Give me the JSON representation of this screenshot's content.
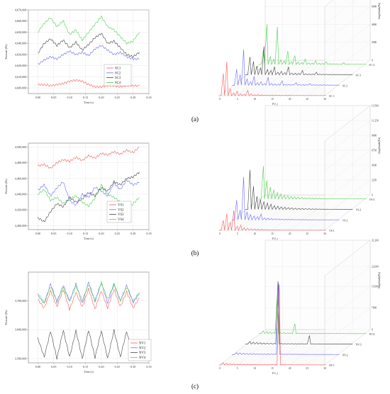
{
  "panels": [
    {
      "label": "(a)"
    },
    {
      "label": "(b)"
    },
    {
      "label": "(c)"
    }
  ],
  "colors": {
    "series1": "#ff5a5a",
    "series2": "#6b6bff",
    "series3": "#444444",
    "series4": "#4fd04f"
  },
  "chart_data": [
    {
      "type": "line",
      "panel": "(a)",
      "xlabel": "Time (s)",
      "ylabel": "Pressure (Pa)",
      "xlim": [
        -0.03,
        0.35
      ],
      "ylim": [
        4595000,
        4670000
      ],
      "xticks": [
        "0.00",
        "0.05",
        "0.10",
        "0.15",
        "0.20",
        "0.25",
        "0.30",
        "0.35"
      ],
      "yticks": [
        "4,600,000",
        "4,610,000",
        "4,620,000",
        "4,630,000",
        "4,640,000",
        "4,650,000",
        "4,660,000",
        "4,670,000"
      ],
      "grid": true,
      "legend": "bottom-right",
      "x": [
        0.0,
        0.02,
        0.04,
        0.06,
        0.08,
        0.1,
        0.12,
        0.14,
        0.16,
        0.18,
        0.2,
        0.22,
        0.24,
        0.26,
        0.28,
        0.3,
        0.32
      ],
      "series": [
        {
          "name": "SC1",
          "values": [
            4603000,
            4603000,
            4602000,
            4603000,
            4604000,
            4606000,
            4607000,
            4606000,
            4603000,
            4601000,
            4601000,
            4602000,
            4602000,
            4601000,
            4602000,
            4602000,
            4602000
          ]
        },
        {
          "name": "SC2",
          "values": [
            4621000,
            4625000,
            4628000,
            4626000,
            4630000,
            4633000,
            4630000,
            4632000,
            4629000,
            4635000,
            4638000,
            4634000,
            4630000,
            4632000,
            4628000,
            4626000,
            4626000
          ]
        },
        {
          "name": "SC3",
          "values": [
            4631000,
            4640000,
            4644000,
            4638000,
            4643000,
            4636000,
            4641000,
            4634000,
            4639000,
            4645000,
            4649000,
            4640000,
            4642000,
            4636000,
            4630000,
            4628000,
            4632000
          ]
        },
        {
          "name": "SC4",
          "values": [
            4650000,
            4658000,
            4663000,
            4655000,
            4660000,
            4648000,
            4652000,
            4643000,
            4650000,
            4657000,
            4664000,
            4655000,
            4652000,
            4646000,
            4640000,
            4642000,
            4650000
          ]
        }
      ]
    },
    {
      "type": "line",
      "panel": "(b)",
      "xlabel": "Time (s)",
      "ylabel": "Pressure (Pa)",
      "xlim": [
        -0.03,
        0.35
      ],
      "ylim": [
        4395000,
        4505000
      ],
      "xticks": [
        "0.00",
        "0.05",
        "0.10",
        "0.15",
        "0.20",
        "0.25",
        "0.30",
        "0.35"
      ],
      "yticks": [
        "4,400,000",
        "4,420,000",
        "4,440,000",
        "4,460,000",
        "4,480,000",
        "4,500,000"
      ],
      "grid": true,
      "legend": "bottom-right",
      "x": [
        0.0,
        0.02,
        0.04,
        0.06,
        0.08,
        0.1,
        0.12,
        0.14,
        0.16,
        0.18,
        0.2,
        0.22,
        0.24,
        0.26,
        0.28,
        0.3,
        0.32
      ],
      "series": [
        {
          "name": "VS1",
          "values": [
            4476000,
            4478000,
            4473000,
            4480000,
            4484000,
            4482000,
            4487000,
            4483000,
            4489000,
            4486000,
            4492000,
            4490000,
            4494000,
            4491000,
            4496000,
            4493000,
            4500000
          ]
        },
        {
          "name": "VS2",
          "values": [
            4445000,
            4452000,
            4438000,
            4448000,
            4456000,
            4432000,
            4426000,
            4440000,
            4436000,
            4449000,
            4444000,
            4438000,
            4454000,
            4446000,
            4458000,
            4452000,
            4455000
          ]
        },
        {
          "name": "VS3",
          "values": [
            4410000,
            4405000,
            4418000,
            4428000,
            4424000,
            4436000,
            4430000,
            4434000,
            4442000,
            4438000,
            4448000,
            4444000,
            4456000,
            4452000,
            4460000,
            4462000,
            4468000
          ]
        },
        {
          "name": "VS4",
          "values": [
            4440000,
            4446000,
            4432000,
            4436000,
            4428000,
            4434000,
            4438000,
            4430000,
            4425000,
            4435000,
            4452000,
            4440000,
            4436000,
            4430000,
            4420000,
            4428000,
            4436000
          ]
        }
      ]
    },
    {
      "type": "line",
      "panel": "(c)",
      "xlabel": "Time (s)",
      "ylabel": "Pressure (Pa)",
      "xlim": [
        -0.03,
        0.35
      ],
      "ylim": [
        3485000,
        3800000
      ],
      "xticks": [
        "0.00",
        "0.05",
        "0.10",
        "0.15",
        "0.20",
        "0.25",
        "0.30",
        "0.35"
      ],
      "yticks": [
        "3,500,000",
        "3,600,000",
        "3,700,000"
      ],
      "grid": true,
      "legend": "bottom-right",
      "x": [
        0.0,
        0.02,
        0.04,
        0.06,
        0.08,
        0.1,
        0.12,
        0.14,
        0.16,
        0.18,
        0.2,
        0.22,
        0.24,
        0.26,
        0.28,
        0.3,
        0.32
      ],
      "series": [
        {
          "name": "NV1",
          "values": [
            3705000,
            3675000,
            3735000,
            3680000,
            3740000,
            3670000,
            3730000,
            3678000,
            3742000,
            3672000,
            3735000,
            3675000,
            3740000,
            3680000,
            3732000,
            3676000,
            3710000
          ]
        },
        {
          "name": "NV2",
          "values": [
            3720000,
            3690000,
            3760000,
            3695000,
            3755000,
            3700000,
            3760000,
            3690000,
            3765000,
            3698000,
            3762000,
            3692000,
            3758000,
            3700000,
            3755000,
            3695000,
            3725000
          ]
        },
        {
          "name": "NV3",
          "values": [
            3570000,
            3505000,
            3595000,
            3500000,
            3598000,
            3505000,
            3596000,
            3500000,
            3598000,
            3503000,
            3596000,
            3500000,
            3598000,
            3505000,
            3595000,
            3500000,
            3560000
          ]
        },
        {
          "name": "NV4",
          "values": [
            3725000,
            3695000,
            3750000,
            3700000,
            3745000,
            3698000,
            3752000,
            3702000,
            3758000,
            3700000,
            3765000,
            3705000,
            3760000,
            3700000,
            3748000,
            3698000,
            3730000
          ]
        }
      ]
    },
    {
      "type": "waterfall",
      "panel": "(a)",
      "xlabel": "F/f_r",
      "zlabel": "Amplitude(Pa)",
      "xticks": [
        "0",
        "5",
        "10",
        "15",
        "20",
        "25",
        "30"
      ],
      "zticks": [
        "0",
        "2000",
        "4000",
        "6000",
        "8000",
        "10,000"
      ],
      "zlim": [
        0,
        10000
      ],
      "row_labels": [
        "SC-1",
        "SC-2",
        "SC-3",
        "SC-4"
      ],
      "x": [
        0,
        1,
        2,
        3,
        4,
        5,
        6,
        7,
        8,
        9,
        10,
        11,
        12,
        13,
        14,
        15,
        16,
        17,
        18,
        19,
        20,
        21,
        22,
        23,
        24,
        25,
        26,
        27,
        28,
        29,
        30
      ],
      "series": [
        {
          "name": "SC1",
          "values": [
            0,
            2500,
            3800,
            800,
            300,
            500,
            200,
            150,
            600,
            200,
            100,
            120,
            90,
            80,
            70,
            80,
            60,
            60,
            50,
            50,
            60,
            40,
            40,
            40,
            30,
            30,
            30,
            30,
            30,
            30,
            30
          ]
        },
        {
          "name": "SC2",
          "values": [
            0,
            1800,
            1200,
            4000,
            700,
            400,
            1000,
            300,
            400,
            200,
            900,
            200,
            150,
            120,
            500,
            100,
            90,
            80,
            300,
            70,
            60,
            60,
            200,
            50,
            50,
            40,
            40,
            40,
            30,
            30,
            30
          ]
        },
        {
          "name": "SC3",
          "values": [
            0,
            2000,
            1500,
            1000,
            800,
            3200,
            600,
            500,
            900,
            300,
            400,
            250,
            900,
            200,
            180,
            160,
            500,
            120,
            100,
            90,
            300,
            80,
            70,
            60,
            50,
            50,
            40,
            40,
            30,
            30,
            30
          ]
        },
        {
          "name": "SC4",
          "values": [
            0,
            1600,
            4500,
            900,
            600,
            4200,
            500,
            400,
            1500,
            300,
            1000,
            250,
            200,
            600,
            180,
            150,
            400,
            120,
            100,
            300,
            90,
            80,
            70,
            60,
            200,
            50,
            40,
            40,
            30,
            30,
            30
          ]
        }
      ]
    },
    {
      "type": "waterfall",
      "panel": "(b)",
      "xlabel": "F/f_r",
      "zlabel": "Amplitude(Pa)",
      "xticks": [
        "0",
        "5",
        "10",
        "15",
        "20",
        "25",
        "30"
      ],
      "zticks": [
        "0",
        "2250",
        "4500",
        "6750",
        "9000",
        "11,250",
        "13,500"
      ],
      "zlim": [
        0,
        13500
      ],
      "row_labels": [
        "VS-1",
        "VS-2",
        "VS-3",
        "VS-4"
      ],
      "x": [
        0,
        1,
        2,
        3,
        4,
        5,
        6,
        7,
        8,
        9,
        10,
        11,
        12,
        13,
        14,
        15,
        16,
        17,
        18,
        19,
        20,
        21,
        22,
        23,
        24,
        25,
        26,
        27,
        28,
        29,
        30
      ],
      "series": [
        {
          "name": "VS1",
          "values": [
            0,
            1500,
            2500,
            1200,
            3000,
            600,
            800,
            400,
            300,
            250,
            200,
            180,
            150,
            120,
            100,
            90,
            80,
            70,
            60,
            50,
            50,
            40,
            40,
            40,
            30,
            30,
            30,
            30,
            30,
            30,
            30
          ]
        },
        {
          "name": "VS2",
          "values": [
            0,
            3000,
            1500,
            6500,
            1200,
            800,
            600,
            500,
            900,
            300,
            250,
            200,
            180,
            150,
            120,
            100,
            90,
            80,
            70,
            60,
            50,
            50,
            40,
            40,
            30,
            30,
            30,
            30,
            30,
            30,
            30
          ]
        },
        {
          "name": "VS3",
          "values": [
            0,
            6000,
            3500,
            2000,
            1500,
            1200,
            1000,
            800,
            600,
            500,
            400,
            350,
            300,
            250,
            200,
            180,
            160,
            140,
            120,
            100,
            90,
            80,
            70,
            60,
            50,
            50,
            40,
            40,
            30,
            30,
            30
          ]
        },
        {
          "name": "VS4",
          "values": [
            0,
            5000,
            2800,
            1800,
            1400,
            1000,
            800,
            600,
            500,
            400,
            350,
            300,
            250,
            200,
            180,
            160,
            140,
            120,
            100,
            90,
            80,
            70,
            60,
            50,
            50,
            40,
            40,
            30,
            30,
            30,
            30
          ]
        }
      ]
    },
    {
      "type": "waterfall",
      "panel": "(c)",
      "xlabel": "F/f_r",
      "zlabel": "Amplitude(Pa)",
      "xticks": [
        "0",
        "5",
        "10",
        "15",
        "20",
        "25",
        "30"
      ],
      "zticks": [
        "0",
        "7600",
        "15,000",
        "22,000",
        "31,200"
      ],
      "zlim": [
        0,
        31200
      ],
      "row_labels": [
        "NV-1",
        "NV-2",
        "NV-3",
        "NV-4"
      ],
      "x": [
        0,
        1,
        2,
        3,
        4,
        5,
        6,
        7,
        8,
        9,
        10,
        11,
        12,
        13,
        14,
        15,
        16,
        17,
        18,
        19,
        20,
        21,
        22,
        23,
        24,
        25,
        26,
        27,
        28,
        29,
        30
      ],
      "series": [
        {
          "name": "NV1",
          "values": [
            0,
            800,
            600,
            500,
            400,
            300,
            300,
            250,
            250,
            200,
            200,
            200,
            180,
            180,
            180,
            160,
            160,
            28000,
            200,
            150,
            150,
            120,
            120,
            100,
            100,
            90,
            80,
            70,
            60,
            50,
            40
          ]
        },
        {
          "name": "NV2",
          "values": [
            0,
            700,
            600,
            500,
            400,
            350,
            300,
            250,
            250,
            200,
            200,
            200,
            180,
            25000,
            180,
            160,
            160,
            150,
            150,
            120,
            120,
            100,
            100,
            90,
            80,
            70,
            60,
            50,
            50,
            40,
            40
          ]
        },
        {
          "name": "NV3",
          "values": [
            0,
            900,
            700,
            600,
            500,
            400,
            350,
            300,
            250,
            22000,
            250,
            200,
            200,
            180,
            160,
            150,
            150,
            140,
            3000,
            120,
            110,
            100,
            90,
            80,
            70,
            60,
            50,
            50,
            40,
            40,
            40
          ]
        },
        {
          "name": "NV4",
          "values": [
            0,
            1000,
            800,
            600,
            500,
            14000,
            400,
            350,
            300,
            250,
            3500,
            220,
            200,
            180,
            160,
            150,
            150,
            140,
            130,
            120,
            110,
            100,
            90,
            80,
            70,
            60,
            50,
            50,
            40,
            40,
            40
          ]
        }
      ]
    }
  ]
}
